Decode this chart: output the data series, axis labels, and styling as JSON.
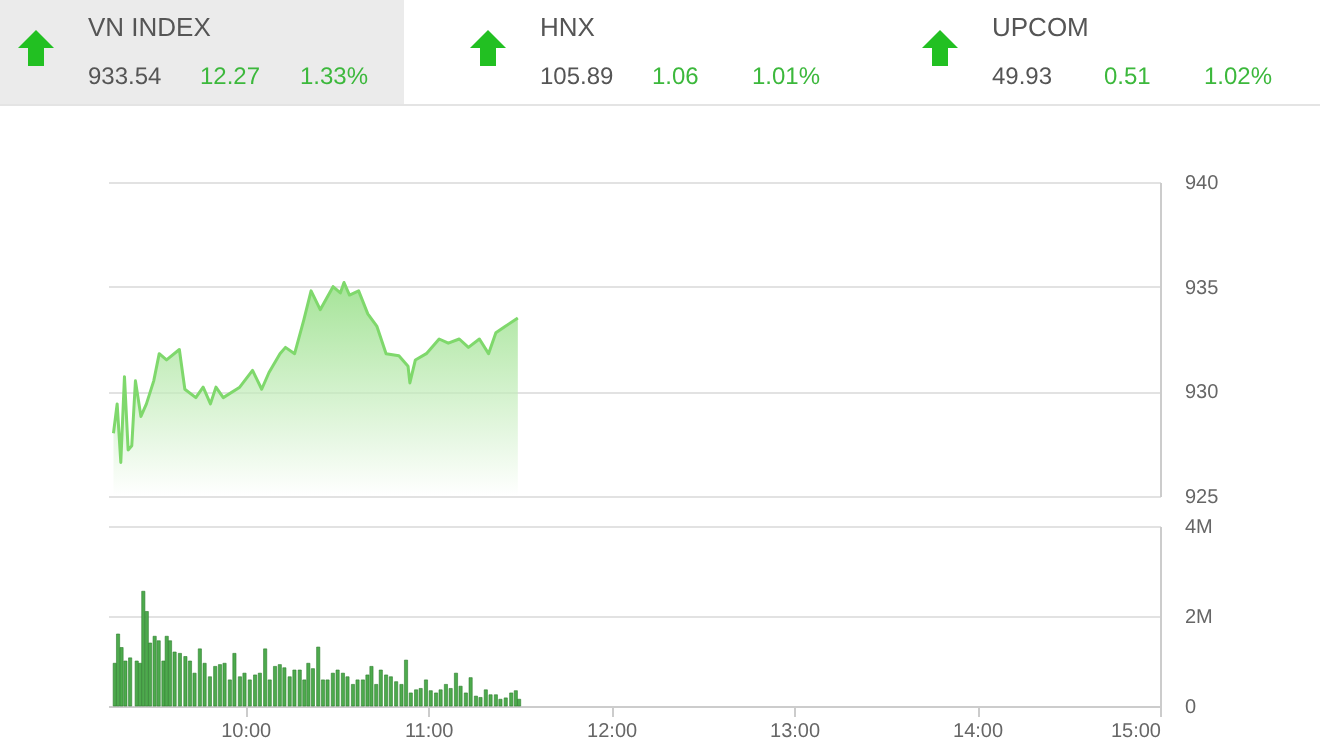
{
  "chart_data": [
    {
      "type": "other",
      "categories": [
        "VN INDEX",
        "HNX",
        "UPCOM"
      ],
      "series": [
        {
          "color": "#555555",
          "values": [
            933.54,
            105.89,
            49.93
          ],
          "value_labels": [
            "933.54",
            "105.89",
            "49.93"
          ]
        },
        {
          "color": "#3cb83c",
          "values": [
            12.27,
            1.06,
            0.51
          ],
          "value_labels": [
            "12.27",
            "1.06",
            "0.51"
          ]
        },
        {
          "color": "#3cb83c",
          "values": [
            1.33,
            1.01,
            1.02
          ],
          "value_labels": [
            "1.33%",
            "1.01%",
            "1.02%"
          ]
        }
      ]
    },
    {
      "type": "area",
      "x": [
        9.28,
        9.3,
        9.32,
        9.34,
        9.36,
        9.38,
        9.4,
        9.43,
        9.46,
        9.5,
        9.53,
        9.57,
        9.64,
        9.67,
        9.73,
        9.77,
        9.81,
        9.84,
        9.88,
        9.97,
        10.04,
        10.09,
        10.13,
        10.19,
        10.22,
        10.27,
        10.32,
        10.36,
        10.41,
        10.48,
        10.52,
        10.54,
        10.57,
        10.62,
        10.67,
        10.72,
        10.77,
        10.84,
        10.89,
        10.9,
        10.93,
        10.99,
        11.06,
        11.11,
        11.17,
        11.22,
        11.28,
        11.33,
        11.37,
        11.42,
        11.49
      ],
      "series": [
        {
          "color": "#7fd86c",
          "values": [
            928.0,
            929.4,
            926.6,
            930.7,
            927.2,
            927.4,
            930.5,
            928.8,
            929.4,
            930.5,
            931.8,
            931.5,
            932.0,
            930.1,
            929.7,
            930.2,
            929.4,
            930.2,
            929.7,
            930.2,
            931.0,
            930.1,
            930.9,
            931.8,
            932.1,
            931.8,
            933.4,
            934.8,
            933.9,
            935.0,
            934.7,
            935.2,
            934.6,
            934.8,
            933.7,
            933.1,
            931.8,
            931.7,
            931.2,
            930.4,
            931.5,
            931.8,
            932.5,
            932.3,
            932.5,
            932.1,
            932.5,
            931.8,
            932.8,
            933.1,
            933.5
          ]
        }
      ],
      "xlim": [
        9.25,
        15
      ],
      "ylim": [
        925,
        940
      ],
      "yticks": [
        925,
        930,
        935,
        940
      ],
      "grid": "y",
      "tick_labels": "y"
    },
    {
      "type": "bar",
      "color": "#4daa4d",
      "x": [
        9.287,
        9.305,
        9.324,
        9.345,
        9.371,
        9.407,
        9.425,
        9.443,
        9.462,
        9.48,
        9.505,
        9.527,
        9.553,
        9.571,
        9.589,
        9.614,
        9.643,
        9.673,
        9.698,
        9.723,
        9.752,
        9.778,
        9.807,
        9.836,
        9.862,
        9.887,
        9.916,
        9.941,
        9.971,
        9.996,
        10.025,
        10.054,
        10.08,
        10.109,
        10.134,
        10.163,
        10.189,
        10.214,
        10.243,
        10.269,
        10.298,
        10.323,
        10.345,
        10.37,
        10.399,
        10.425,
        10.45,
        10.479,
        10.505,
        10.534,
        10.559,
        10.589,
        10.614,
        10.643,
        10.668,
        10.69,
        10.716,
        10.741,
        10.77,
        10.796,
        10.825,
        10.854,
        10.879,
        10.905,
        10.934,
        10.959,
        10.988,
        11.014,
        11.043,
        11.068,
        11.097,
        11.123,
        11.152,
        11.177,
        11.206,
        11.232,
        11.261,
        11.286,
        11.315,
        11.341,
        11.37,
        11.395,
        11.424,
        11.454,
        11.479,
        11.497
      ],
      "values": [
        0.95,
        1.6,
        1.3,
        1.0,
        1.07,
        1.0,
        0.95,
        2.55,
        2.1,
        1.4,
        1.55,
        1.45,
        1.0,
        1.55,
        1.45,
        1.2,
        1.17,
        1.1,
        1.0,
        0.73,
        1.27,
        0.95,
        0.65,
        0.88,
        0.92,
        0.95,
        0.58,
        1.17,
        0.65,
        0.73,
        0.58,
        0.69,
        0.73,
        1.27,
        0.58,
        0.88,
        0.92,
        0.85,
        0.65,
        0.8,
        0.8,
        0.58,
        0.95,
        0.83,
        1.31,
        0.58,
        0.58,
        0.73,
        0.8,
        0.73,
        0.65,
        0.48,
        0.58,
        0.58,
        0.69,
        0.88,
        0.48,
        0.8,
        0.69,
        0.65,
        0.54,
        0.48,
        1.02,
        0.29,
        0.36,
        0.39,
        0.58,
        0.34,
        0.29,
        0.36,
        0.48,
        0.39,
        0.73,
        0.44,
        0.29,
        0.63,
        0.22,
        0.19,
        0.36,
        0.25,
        0.25,
        0.15,
        0.18,
        0.29,
        0.34,
        0.15
      ],
      "xlim": [
        9.25,
        15
      ],
      "xticks": [
        {
          "value": 10,
          "label": "10:00"
        },
        {
          "value": 11,
          "label": "11:00"
        },
        {
          "value": 12,
          "label": "12:00"
        },
        {
          "value": 13,
          "label": "13:00"
        },
        {
          "value": 14,
          "label": "14:00"
        },
        {
          "value": 15,
          "label": "15:00"
        }
      ],
      "ylim": [
        0,
        4
      ],
      "yticks": [
        0,
        {
          "value": 2,
          "label": "2M"
        },
        {
          "value": 4,
          "label": "4M"
        }
      ],
      "grid": "y"
    }
  ]
}
